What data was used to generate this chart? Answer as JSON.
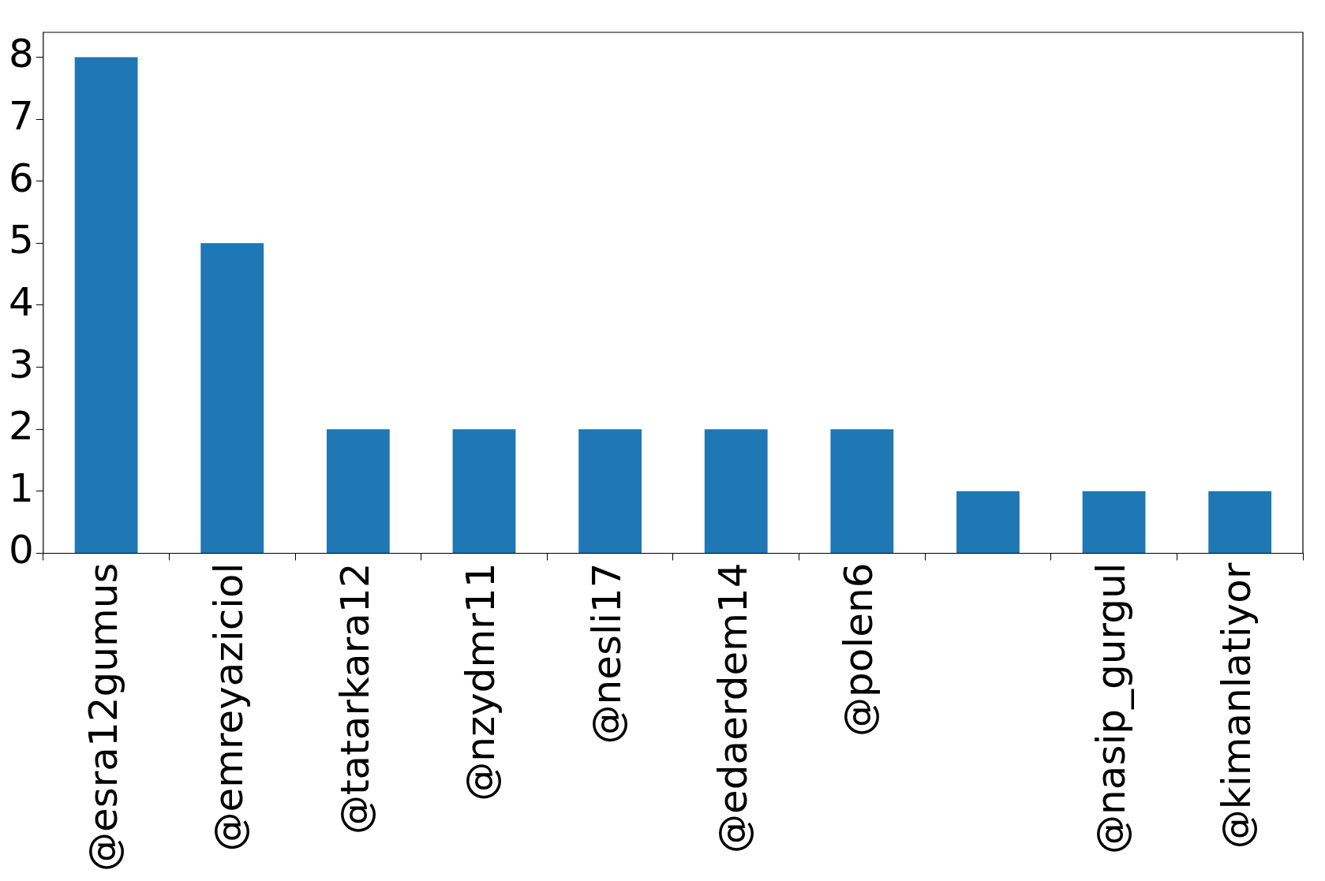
{
  "chart_data": {
    "type": "bar",
    "categories": [
      "@esra12gumus",
      "@emreyaziciol",
      "@tatarkara12",
      "@nzydmr11",
      "@nesli17",
      "@edaerdem14",
      "@polen6",
      null,
      "@nasip_gurgul",
      "@kimanlatiyor"
    ],
    "values": [
      8,
      5,
      2,
      2,
      2,
      2,
      2,
      1,
      1,
      1
    ],
    "color": "#1f77b4",
    "ylim": [
      0,
      8.4
    ],
    "yticks": [
      0,
      1,
      2,
      3,
      4,
      5,
      6,
      7,
      8
    ],
    "grid": false,
    "legend": false
  }
}
